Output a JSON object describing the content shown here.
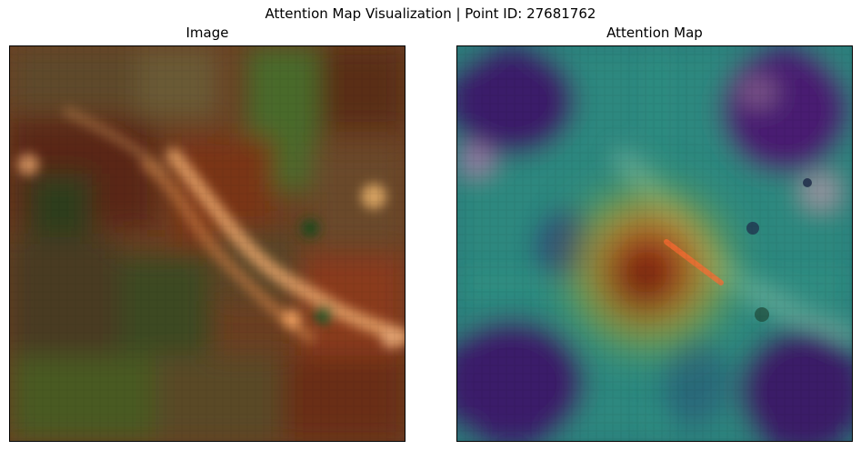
{
  "figure": {
    "suptitle": "Attention Map Visualization | Point ID: 27681762"
  },
  "panels": [
    {
      "title": "Image",
      "content": "satellite-image"
    },
    {
      "title": "Attention Map",
      "content": "attention-heatmap-overlay"
    }
  ],
  "colors": {
    "frame": "#000000",
    "background": "#ffffff",
    "soil_brown": "#7a3a1c",
    "vegetation_green": "#3f5a22",
    "ridge_highlight": "#e8a46a",
    "attention_low": "#3b1a6b",
    "attention_mid": "#2a9a8a",
    "attention_high": "#c8281a"
  }
}
